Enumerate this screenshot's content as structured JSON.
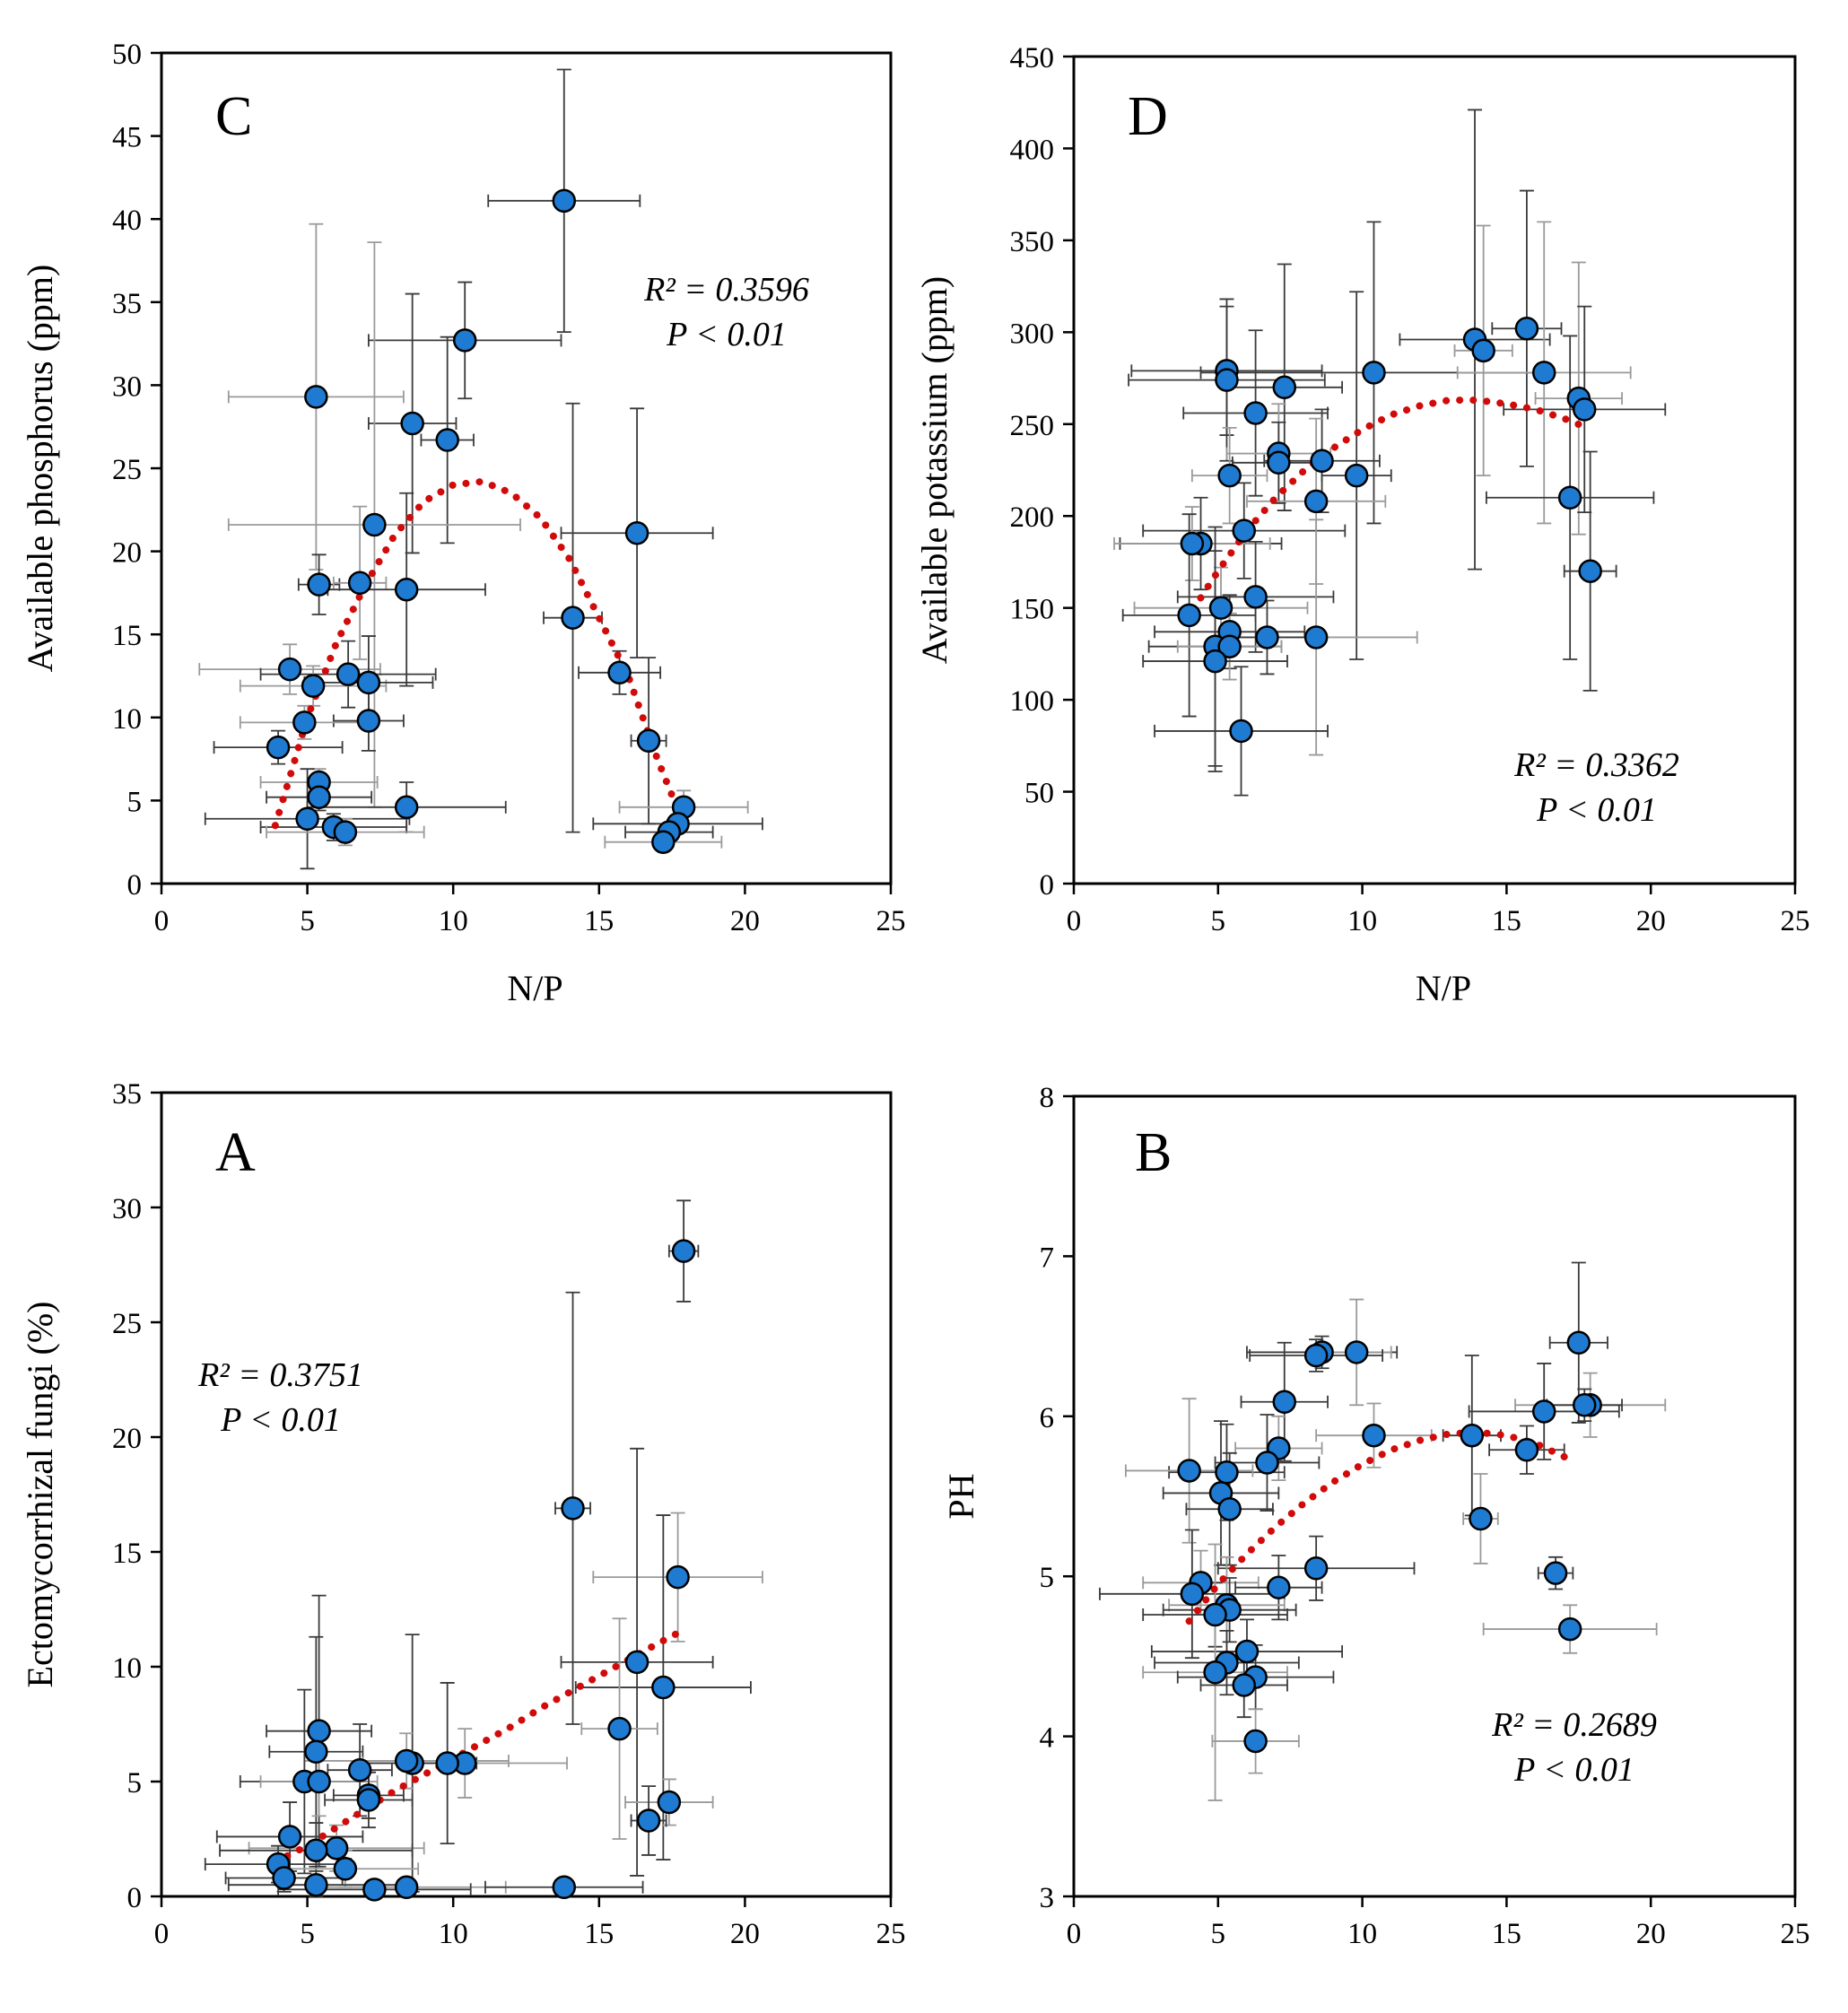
{
  "figure": {
    "marker_color": "#1f7bd1",
    "marker_edge": "#000000",
    "trend_color": "#d10a0a",
    "errorbar_color_dark": "#3a3a3a",
    "errorbar_color_light": "#9a9a9a"
  },
  "chart_data": [
    {
      "id": "C",
      "type": "scatter",
      "panel_label": "C",
      "title": "",
      "xlabel": "N/P",
      "ylabel": "Available phosphorus (ppm)",
      "xlim": [
        0,
        25
      ],
      "ylim": [
        0,
        50
      ],
      "xticks": [
        0,
        5,
        10,
        15,
        20,
        25
      ],
      "yticks": [
        0,
        5,
        10,
        15,
        20,
        25,
        30,
        35,
        40,
        45,
        50
      ],
      "x_tick_labels": [
        "0",
        "5",
        "10",
        "15",
        "20",
        "25"
      ],
      "y_tick_labels": [
        "0",
        "5",
        "10",
        "15",
        "20",
        "25",
        "30",
        "35",
        "40",
        "45",
        "50"
      ],
      "annotation": {
        "r2": "R² = 0.3596",
        "p": "P < 0.01"
      },
      "trendline": {
        "style": "dotted",
        "x": [
          3.9,
          4.5,
          5.0,
          6.0,
          7.0,
          8.0,
          9.0,
          10.0,
          11.0,
          12.0,
          13.0,
          14.0,
          15.0,
          16.0,
          17.0,
          17.8
        ],
        "y": [
          3.5,
          7.0,
          10.0,
          14.5,
          18.0,
          21.0,
          23.0,
          24.0,
          24.2,
          23.5,
          22.0,
          19.5,
          16.0,
          12.5,
          7.5,
          4.0
        ]
      },
      "points": [
        {
          "x": 13.8,
          "y": 41.1,
          "xerr": 2.6,
          "yerr": 7.9
        },
        {
          "x": 10.4,
          "y": 32.7,
          "xerr": 3.3,
          "yerr": 3.5
        },
        {
          "x": 5.3,
          "y": 29.3,
          "xerr": 3.0,
          "yerr": 10.4
        },
        {
          "x": 8.6,
          "y": 27.7,
          "xerr": 1.5,
          "yerr": 7.8
        },
        {
          "x": 9.8,
          "y": 26.7,
          "xerr": 0.9,
          "yerr": 6.2
        },
        {
          "x": 7.3,
          "y": 21.6,
          "xerr": 5.0,
          "yerr": 17.0
        },
        {
          "x": 16.3,
          "y": 21.1,
          "xerr": 2.6,
          "yerr": 7.5
        },
        {
          "x": 5.4,
          "y": 18.0,
          "xerr": 0.7,
          "yerr": 1.8
        },
        {
          "x": 6.8,
          "y": 18.1,
          "xerr": 0.9,
          "yerr": 4.6
        },
        {
          "x": 8.4,
          "y": 17.7,
          "xerr": 2.7,
          "yerr": 5.8
        },
        {
          "x": 14.1,
          "y": 16.0,
          "xerr": 1.0,
          "yerr": 12.9
        },
        {
          "x": 4.4,
          "y": 12.9,
          "xerr": 3.1,
          "yerr": 1.5
        },
        {
          "x": 15.7,
          "y": 12.7,
          "xerr": 1.4,
          "yerr": 1.3
        },
        {
          "x": 6.4,
          "y": 12.6,
          "xerr": 3.0,
          "yerr": 2.0
        },
        {
          "x": 5.2,
          "y": 11.9,
          "xerr": 2.5,
          "yerr": 1.2
        },
        {
          "x": 7.1,
          "y": 12.1,
          "xerr": 2.2,
          "yerr": 2.8
        },
        {
          "x": 7.1,
          "y": 9.8,
          "xerr": 1.2,
          "yerr": 1.8
        },
        {
          "x": 4.9,
          "y": 9.7,
          "xerr": 2.2,
          "yerr": 1.0
        },
        {
          "x": 16.7,
          "y": 8.6,
          "xerr": 0.6,
          "yerr": 5.0
        },
        {
          "x": 4.0,
          "y": 8.2,
          "xerr": 2.2,
          "yerr": 1.0
        },
        {
          "x": 5.4,
          "y": 6.1,
          "xerr": 2.0,
          "yerr": 0.8
        },
        {
          "x": 5.4,
          "y": 5.2,
          "xerr": 1.8,
          "yerr": 0.8
        },
        {
          "x": 8.4,
          "y": 4.6,
          "xerr": 3.4,
          "yerr": 1.5
        },
        {
          "x": 17.9,
          "y": 4.6,
          "xerr": 2.2,
          "yerr": 1.0
        },
        {
          "x": 5.0,
          "y": 3.9,
          "xerr": 3.5,
          "yerr": 3.0
        },
        {
          "x": 5.9,
          "y": 3.4,
          "xerr": 2.5,
          "yerr": 0.8
        },
        {
          "x": 6.3,
          "y": 3.1,
          "xerr": 2.7,
          "yerr": 0.8
        },
        {
          "x": 17.7,
          "y": 3.6,
          "xerr": 2.9,
          "yerr": 0.5
        },
        {
          "x": 17.4,
          "y": 3.1,
          "xerr": 1.5,
          "yerr": 0.5
        },
        {
          "x": 17.2,
          "y": 2.5,
          "xerr": 2.0,
          "yerr": 0.4
        }
      ]
    },
    {
      "id": "D",
      "type": "scatter",
      "panel_label": "D",
      "title": "",
      "xlabel": "N/P",
      "ylabel": "Available potassium (ppm)",
      "xlim": [
        0,
        25
      ],
      "ylim": [
        0,
        450
      ],
      "xticks": [
        0,
        5,
        10,
        15,
        20,
        25
      ],
      "yticks": [
        0,
        50,
        100,
        150,
        200,
        250,
        300,
        350,
        400,
        450
      ],
      "x_tick_labels": [
        "0",
        "5",
        "10",
        "15",
        "20",
        "25"
      ],
      "y_tick_labels": [
        "0",
        "50",
        "100",
        "150",
        "200",
        "250",
        "300",
        "350",
        "400",
        "450"
      ],
      "annotation": {
        "r2": "R² = 0.3362",
        "p": "P < 0.01"
      },
      "trendline": {
        "style": "dotted",
        "x": [
          3.9,
          4.5,
          5.0,
          6.0,
          7.0,
          8.0,
          9.0,
          10.0,
          11.0,
          12.0,
          13.0,
          14.0,
          15.0,
          16.0,
          17.0,
          17.8
        ],
        "y": [
          143,
          158,
          170,
          192,
          210,
          225,
          237,
          247,
          255,
          260,
          263,
          263,
          261,
          258,
          253,
          248
        ]
      },
      "points": [
        {
          "x": 15.7,
          "y": 302,
          "xerr": 1.2,
          "yerr": 75
        },
        {
          "x": 13.9,
          "y": 296,
          "xerr": 2.6,
          "yerr": 125
        },
        {
          "x": 14.2,
          "y": 290,
          "xerr": 1.0,
          "yerr": 68
        },
        {
          "x": 5.3,
          "y": 279,
          "xerr": 3.3,
          "yerr": 35
        },
        {
          "x": 10.4,
          "y": 278,
          "xerr": 6.0,
          "yerr": 82
        },
        {
          "x": 16.3,
          "y": 278,
          "xerr": 3.0,
          "yerr": 82
        },
        {
          "x": 5.3,
          "y": 274,
          "xerr": 3.4,
          "yerr": 44
        },
        {
          "x": 7.3,
          "y": 270,
          "xerr": 2.0,
          "yerr": 67
        },
        {
          "x": 17.5,
          "y": 264,
          "xerr": 1.5,
          "yerr": 74
        },
        {
          "x": 17.7,
          "y": 258,
          "xerr": 2.8,
          "yerr": 56
        },
        {
          "x": 6.3,
          "y": 256,
          "xerr": 2.5,
          "yerr": 45
        },
        {
          "x": 7.1,
          "y": 234,
          "xerr": 1.8,
          "yerr": 27
        },
        {
          "x": 8.6,
          "y": 230,
          "xerr": 2.0,
          "yerr": 28
        },
        {
          "x": 7.1,
          "y": 229,
          "xerr": 1.6,
          "yerr": 22
        },
        {
          "x": 5.4,
          "y": 222,
          "xerr": 1.3,
          "yerr": 26
        },
        {
          "x": 9.8,
          "y": 222,
          "xerr": 1.2,
          "yerr": 100
        },
        {
          "x": 17.2,
          "y": 210,
          "xerr": 2.9,
          "yerr": 88
        },
        {
          "x": 8.4,
          "y": 208,
          "xerr": 2.4,
          "yerr": 45
        },
        {
          "x": 5.9,
          "y": 192,
          "xerr": 3.5,
          "yerr": 26
        },
        {
          "x": 4.4,
          "y": 185,
          "xerr": 2.8,
          "yerr": 25
        },
        {
          "x": 4.1,
          "y": 185,
          "xerr": 2.7,
          "yerr": 20
        },
        {
          "x": 17.9,
          "y": 170,
          "xerr": 0.9,
          "yerr": 65
        },
        {
          "x": 6.3,
          "y": 156,
          "xerr": 2.7,
          "yerr": 30
        },
        {
          "x": 5.1,
          "y": 150,
          "xerr": 3.0,
          "yerr": 22
        },
        {
          "x": 4.0,
          "y": 146,
          "xerr": 2.3,
          "yerr": 55
        },
        {
          "x": 5.4,
          "y": 137,
          "xerr": 2.6,
          "yerr": 20
        },
        {
          "x": 8.4,
          "y": 134,
          "xerr": 3.5,
          "yerr": 64
        },
        {
          "x": 6.7,
          "y": 134,
          "xerr": 1.6,
          "yerr": 20
        },
        {
          "x": 4.9,
          "y": 129,
          "xerr": 2.3,
          "yerr": 65
        },
        {
          "x": 5.4,
          "y": 129,
          "xerr": 1.8,
          "yerr": 18
        },
        {
          "x": 4.9,
          "y": 121,
          "xerr": 2.5,
          "yerr": 60
        },
        {
          "x": 5.8,
          "y": 83,
          "xerr": 3.0,
          "yerr": 35
        }
      ]
    },
    {
      "id": "A",
      "type": "scatter",
      "panel_label": "A",
      "title": "",
      "xlabel": "",
      "ylabel": "Ectomycorrhizal fungi (%)",
      "xlim": [
        0,
        25
      ],
      "ylim": [
        0,
        35
      ],
      "xticks": [
        0,
        5,
        10,
        15,
        20,
        25
      ],
      "yticks": [
        0,
        5,
        10,
        15,
        20,
        25,
        30,
        35
      ],
      "x_tick_labels": [
        "0",
        "5",
        "10",
        "15",
        "20",
        "25"
      ],
      "y_tick_labels": [
        "0",
        "5",
        "10",
        "15",
        "20",
        "25",
        "30",
        "35"
      ],
      "annotation": {
        "r2": "R² = 0.3751",
        "p": "P < 0.01"
      },
      "trendline": {
        "style": "dotted",
        "x": [
          3.9,
          5.0,
          6.0,
          7.0,
          8.0,
          9.0,
          10.0,
          11.0,
          12.0,
          13.0,
          14.0,
          15.0,
          16.0,
          17.0,
          17.9
        ],
        "y": [
          1.5,
          2.2,
          3.0,
          3.8,
          4.6,
          5.3,
          6.0,
          6.7,
          7.4,
          8.2,
          8.9,
          9.6,
          10.3,
          11.0,
          11.6
        ]
      },
      "points": [
        {
          "x": 17.9,
          "y": 28.1,
          "xerr": 0.5,
          "yerr": 2.2
        },
        {
          "x": 14.1,
          "y": 16.9,
          "xerr": 0.6,
          "yerr": 9.4
        },
        {
          "x": 17.7,
          "y": 13.9,
          "xerr": 2.9,
          "yerr": 2.8
        },
        {
          "x": 16.3,
          "y": 10.2,
          "xerr": 2.6,
          "yerr": 9.3
        },
        {
          "x": 17.2,
          "y": 9.1,
          "xerr": 3.0,
          "yerr": 7.5
        },
        {
          "x": 15.7,
          "y": 7.3,
          "xerr": 1.3,
          "yerr": 4.8
        },
        {
          "x": 5.4,
          "y": 7.2,
          "xerr": 1.8,
          "yerr": 5.9
        },
        {
          "x": 5.3,
          "y": 6.3,
          "xerr": 1.6,
          "yerr": 5.0
        },
        {
          "x": 10.4,
          "y": 5.8,
          "xerr": 3.5,
          "yerr": 1.5
        },
        {
          "x": 9.8,
          "y": 5.8,
          "xerr": 1.0,
          "yerr": 3.5
        },
        {
          "x": 8.6,
          "y": 5.8,
          "xerr": 1.8,
          "yerr": 5.6
        },
        {
          "x": 8.4,
          "y": 5.9,
          "xerr": 3.5,
          "yerr": 1.2
        },
        {
          "x": 6.8,
          "y": 5.5,
          "xerr": 1.1,
          "yerr": 2.0
        },
        {
          "x": 4.9,
          "y": 5.0,
          "xerr": 2.2,
          "yerr": 4.0
        },
        {
          "x": 5.4,
          "y": 5.0,
          "xerr": 2.0,
          "yerr": 1.5
        },
        {
          "x": 7.1,
          "y": 4.4,
          "xerr": 1.2,
          "yerr": 1.0
        },
        {
          "x": 7.1,
          "y": 4.2,
          "xerr": 1.5,
          "yerr": 1.2
        },
        {
          "x": 17.4,
          "y": 4.1,
          "xerr": 1.5,
          "yerr": 1.0
        },
        {
          "x": 16.7,
          "y": 3.3,
          "xerr": 0.6,
          "yerr": 1.5
        },
        {
          "x": 4.4,
          "y": 2.6,
          "xerr": 2.5,
          "yerr": 1.5
        },
        {
          "x": 6.0,
          "y": 2.1,
          "xerr": 3.0,
          "yerr": 1.0
        },
        {
          "x": 5.3,
          "y": 2.0,
          "xerr": 3.3,
          "yerr": 1.2
        },
        {
          "x": 4.0,
          "y": 1.4,
          "xerr": 2.5,
          "yerr": 0.8
        },
        {
          "x": 6.3,
          "y": 1.2,
          "xerr": 2.5,
          "yerr": 0.8
        },
        {
          "x": 4.2,
          "y": 0.8,
          "xerr": 2.0,
          "yerr": 0.6
        },
        {
          "x": 5.3,
          "y": 0.5,
          "xerr": 3.0,
          "yerr": 0.6
        },
        {
          "x": 8.4,
          "y": 0.4,
          "xerr": 3.4,
          "yerr": 0.3
        },
        {
          "x": 7.3,
          "y": 0.3,
          "xerr": 3.3,
          "yerr": 0.3
        },
        {
          "x": 13.8,
          "y": 0.4,
          "xerr": 2.7,
          "yerr": 0.3
        }
      ]
    },
    {
      "id": "B",
      "type": "scatter",
      "panel_label": "B",
      "title": "",
      "xlabel": "",
      "ylabel": "PH",
      "xlim": [
        0,
        25
      ],
      "ylim": [
        3,
        8
      ],
      "xticks": [
        0,
        5,
        10,
        15,
        20,
        25
      ],
      "yticks": [
        3,
        4,
        5,
        6,
        7,
        8
      ],
      "x_tick_labels": [
        "0",
        "5",
        "10",
        "15",
        "20",
        "25"
      ],
      "y_tick_labels": [
        "3",
        "4",
        "5",
        "6",
        "7",
        "8"
      ],
      "annotation": {
        "r2": "R² = 0.2689",
        "p": "P < 0.01"
      },
      "trendline": {
        "style": "dotted",
        "x": [
          4.0,
          5.0,
          6.0,
          7.0,
          8.0,
          9.0,
          10.0,
          11.0,
          12.0,
          13.0,
          14.0,
          15.0,
          16.0,
          17.2
        ],
        "y": [
          4.72,
          4.95,
          5.14,
          5.31,
          5.46,
          5.59,
          5.7,
          5.79,
          5.85,
          5.89,
          5.9,
          5.88,
          5.83,
          5.73
        ]
      },
      "points": [
        {
          "x": 17.5,
          "y": 6.46,
          "xerr": 1.0,
          "yerr": 0.5
        },
        {
          "x": 8.6,
          "y": 6.4,
          "xerr": 2.6,
          "yerr": 0.1
        },
        {
          "x": 9.8,
          "y": 6.4,
          "xerr": 1.2,
          "yerr": 0.33
        },
        {
          "x": 8.4,
          "y": 6.38,
          "xerr": 2.3,
          "yerr": 0.1
        },
        {
          "x": 7.3,
          "y": 6.09,
          "xerr": 1.5,
          "yerr": 0.37
        },
        {
          "x": 17.9,
          "y": 6.07,
          "xerr": 2.6,
          "yerr": 0.2
        },
        {
          "x": 17.7,
          "y": 6.07,
          "xerr": 1.3,
          "yerr": 0.1
        },
        {
          "x": 16.3,
          "y": 6.03,
          "xerr": 2.6,
          "yerr": 0.3
        },
        {
          "x": 10.4,
          "y": 5.88,
          "xerr": 2.0,
          "yerr": 0.2
        },
        {
          "x": 13.8,
          "y": 5.88,
          "xerr": 1.0,
          "yerr": 0.5
        },
        {
          "x": 15.7,
          "y": 5.79,
          "xerr": 1.3,
          "yerr": 0.15
        },
        {
          "x": 7.1,
          "y": 5.8,
          "xerr": 1.5,
          "yerr": 0.2
        },
        {
          "x": 6.7,
          "y": 5.71,
          "xerr": 1.8,
          "yerr": 0.3
        },
        {
          "x": 5.3,
          "y": 5.65,
          "xerr": 2.0,
          "yerr": 0.3
        },
        {
          "x": 4.0,
          "y": 5.66,
          "xerr": 2.2,
          "yerr": 0.45
        },
        {
          "x": 5.1,
          "y": 5.52,
          "xerr": 2.0,
          "yerr": 0.45
        },
        {
          "x": 5.4,
          "y": 5.42,
          "xerr": 1.5,
          "yerr": 0.35
        },
        {
          "x": 14.1,
          "y": 5.36,
          "xerr": 0.6,
          "yerr": 0.28
        },
        {
          "x": 8.4,
          "y": 5.05,
          "xerr": 3.4,
          "yerr": 0.2
        },
        {
          "x": 16.7,
          "y": 5.02,
          "xerr": 0.6,
          "yerr": 0.1
        },
        {
          "x": 4.4,
          "y": 4.96,
          "xerr": 2.0,
          "yerr": 0.2
        },
        {
          "x": 7.1,
          "y": 4.93,
          "xerr": 1.5,
          "yerr": 0.2
        },
        {
          "x": 4.1,
          "y": 4.89,
          "xerr": 3.2,
          "yerr": 0.4
        },
        {
          "x": 5.3,
          "y": 4.82,
          "xerr": 2.0,
          "yerr": 0.3
        },
        {
          "x": 5.4,
          "y": 4.79,
          "xerr": 2.3,
          "yerr": 0.2
        },
        {
          "x": 4.9,
          "y": 4.76,
          "xerr": 2.5,
          "yerr": 0.2
        },
        {
          "x": 17.2,
          "y": 4.67,
          "xerr": 3.0,
          "yerr": 0.15
        },
        {
          "x": 6.0,
          "y": 4.53,
          "xerr": 3.3,
          "yerr": 0.2
        },
        {
          "x": 5.3,
          "y": 4.46,
          "xerr": 2.5,
          "yerr": 0.2
        },
        {
          "x": 4.9,
          "y": 4.4,
          "xerr": 2.5,
          "yerr": 0.8
        },
        {
          "x": 6.3,
          "y": 4.37,
          "xerr": 2.7,
          "yerr": 0.2
        },
        {
          "x": 5.9,
          "y": 4.32,
          "xerr": 1.5,
          "yerr": 0.2
        },
        {
          "x": 6.3,
          "y": 3.97,
          "xerr": 1.5,
          "yerr": 0.2
        }
      ]
    }
  ]
}
